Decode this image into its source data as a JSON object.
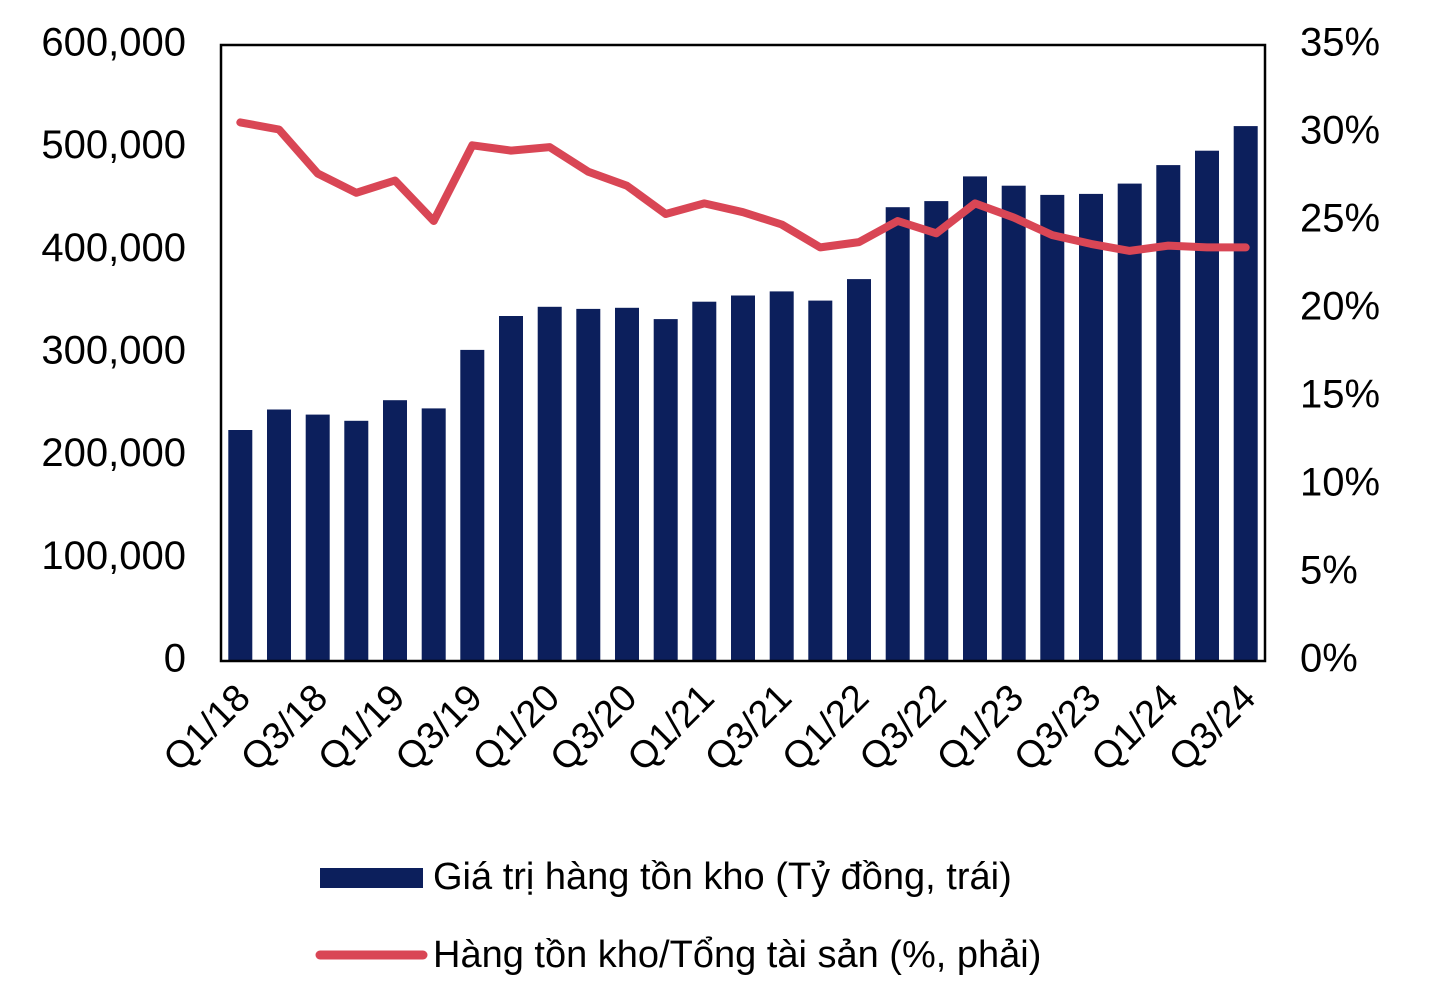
{
  "chart_data": {
    "type": "bar+line",
    "categories": [
      "Q1/18",
      "Q2/18",
      "Q3/18",
      "Q4/18",
      "Q1/19",
      "Q2/19",
      "Q3/19",
      "Q4/19",
      "Q1/20",
      "Q2/20",
      "Q3/20",
      "Q4/20",
      "Q1/21",
      "Q2/21",
      "Q3/21",
      "Q4/21",
      "Q1/22",
      "Q2/22",
      "Q3/22",
      "Q4/22",
      "Q1/23",
      "Q2/23",
      "Q3/23",
      "Q4/23",
      "Q1/24",
      "Q2/24",
      "Q3/24"
    ],
    "x_tick_labels": [
      "Q1/18",
      "Q3/18",
      "Q1/19",
      "Q3/19",
      "Q1/20",
      "Q3/20",
      "Q1/21",
      "Q3/21",
      "Q1/22",
      "Q3/22",
      "Q1/23",
      "Q3/23",
      "Q1/24",
      "Q3/24"
    ],
    "series": [
      {
        "name": "Giá trị hàng tồn kho (Tỷ đồng, trái)",
        "type": "bar",
        "axis": "left",
        "color": "#0c1f5c",
        "values": [
          225000,
          245000,
          240000,
          234000,
          254000,
          246000,
          303000,
          336000,
          345000,
          343000,
          344000,
          333000,
          350000,
          356000,
          360000,
          351000,
          372000,
          442000,
          448000,
          472000,
          463000,
          454000,
          455000,
          465000,
          483000,
          497000,
          521000
        ]
      },
      {
        "name": "Hàng tồn kho/Tổng tài sản (%, phải)",
        "type": "line",
        "axis": "right",
        "color": "#d94655",
        "values": [
          30.6,
          30.2,
          27.7,
          26.6,
          27.3,
          25.0,
          29.3,
          29.0,
          29.2,
          27.8,
          27.0,
          25.4,
          26.0,
          25.5,
          24.8,
          23.5,
          23.8,
          25.0,
          24.3,
          26.0,
          25.2,
          24.2,
          23.7,
          23.3,
          23.6,
          23.5,
          23.5
        ]
      }
    ],
    "ylim_left": [
      0,
      600000
    ],
    "yticks_left": [
      "0",
      "100,000",
      "200,000",
      "300,000",
      "400,000",
      "500,000",
      "600,000"
    ],
    "ylim_right": [
      0,
      35
    ],
    "yticks_right": [
      "0%",
      "5%",
      "10%",
      "15%",
      "20%",
      "25%",
      "30%",
      "35%"
    ],
    "legend_position": "bottom"
  }
}
